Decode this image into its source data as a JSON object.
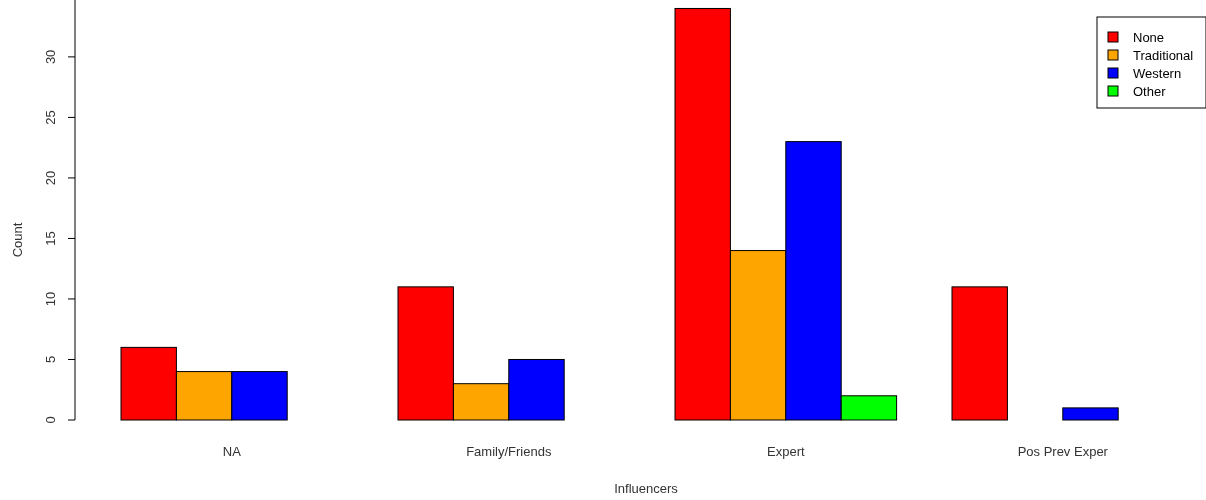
{
  "chart_data": {
    "type": "bar",
    "xlabel": "Influencers",
    "ylabel": "Count",
    "categories": [
      "NA",
      "Family/Friends",
      "Expert",
      "Pos Prev Exper"
    ],
    "series": [
      {
        "name": "None",
        "color": "#ff0000",
        "values": [
          6,
          11,
          34,
          11
        ]
      },
      {
        "name": "Traditional",
        "color": "#ffa500",
        "values": [
          4,
          3,
          14,
          0
        ]
      },
      {
        "name": "Western",
        "color": "#0000ff",
        "values": [
          4,
          5,
          23,
          1
        ]
      },
      {
        "name": "Other",
        "color": "#00ff00",
        "values": [
          0,
          0,
          2,
          0
        ]
      }
    ],
    "ylim": [
      0,
      34.7
    ],
    "yticks": [
      0,
      5,
      10,
      15,
      20,
      25,
      30
    ],
    "grid": false,
    "legend": "top right"
  }
}
